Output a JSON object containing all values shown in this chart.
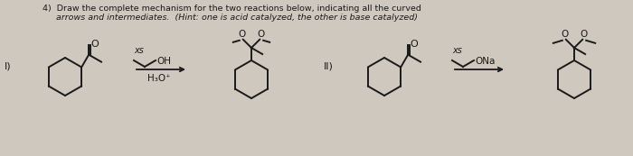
{
  "bg_color": "#cec8be",
  "text_color": "#1a1a1a",
  "title_line1": "4)  Draw the complete mechanism for the two reactions below, indicating all the curved",
  "title_line2": "     arrows and intermediates.  (Hint: one is acid catalyzed, the other is base catalyzed)",
  "label_I": "I)",
  "label_II": "II)",
  "xs_label": "xs",
  "xs_label2": "xs",
  "figsize": [
    7.0,
    1.73
  ],
  "dpi": 100
}
